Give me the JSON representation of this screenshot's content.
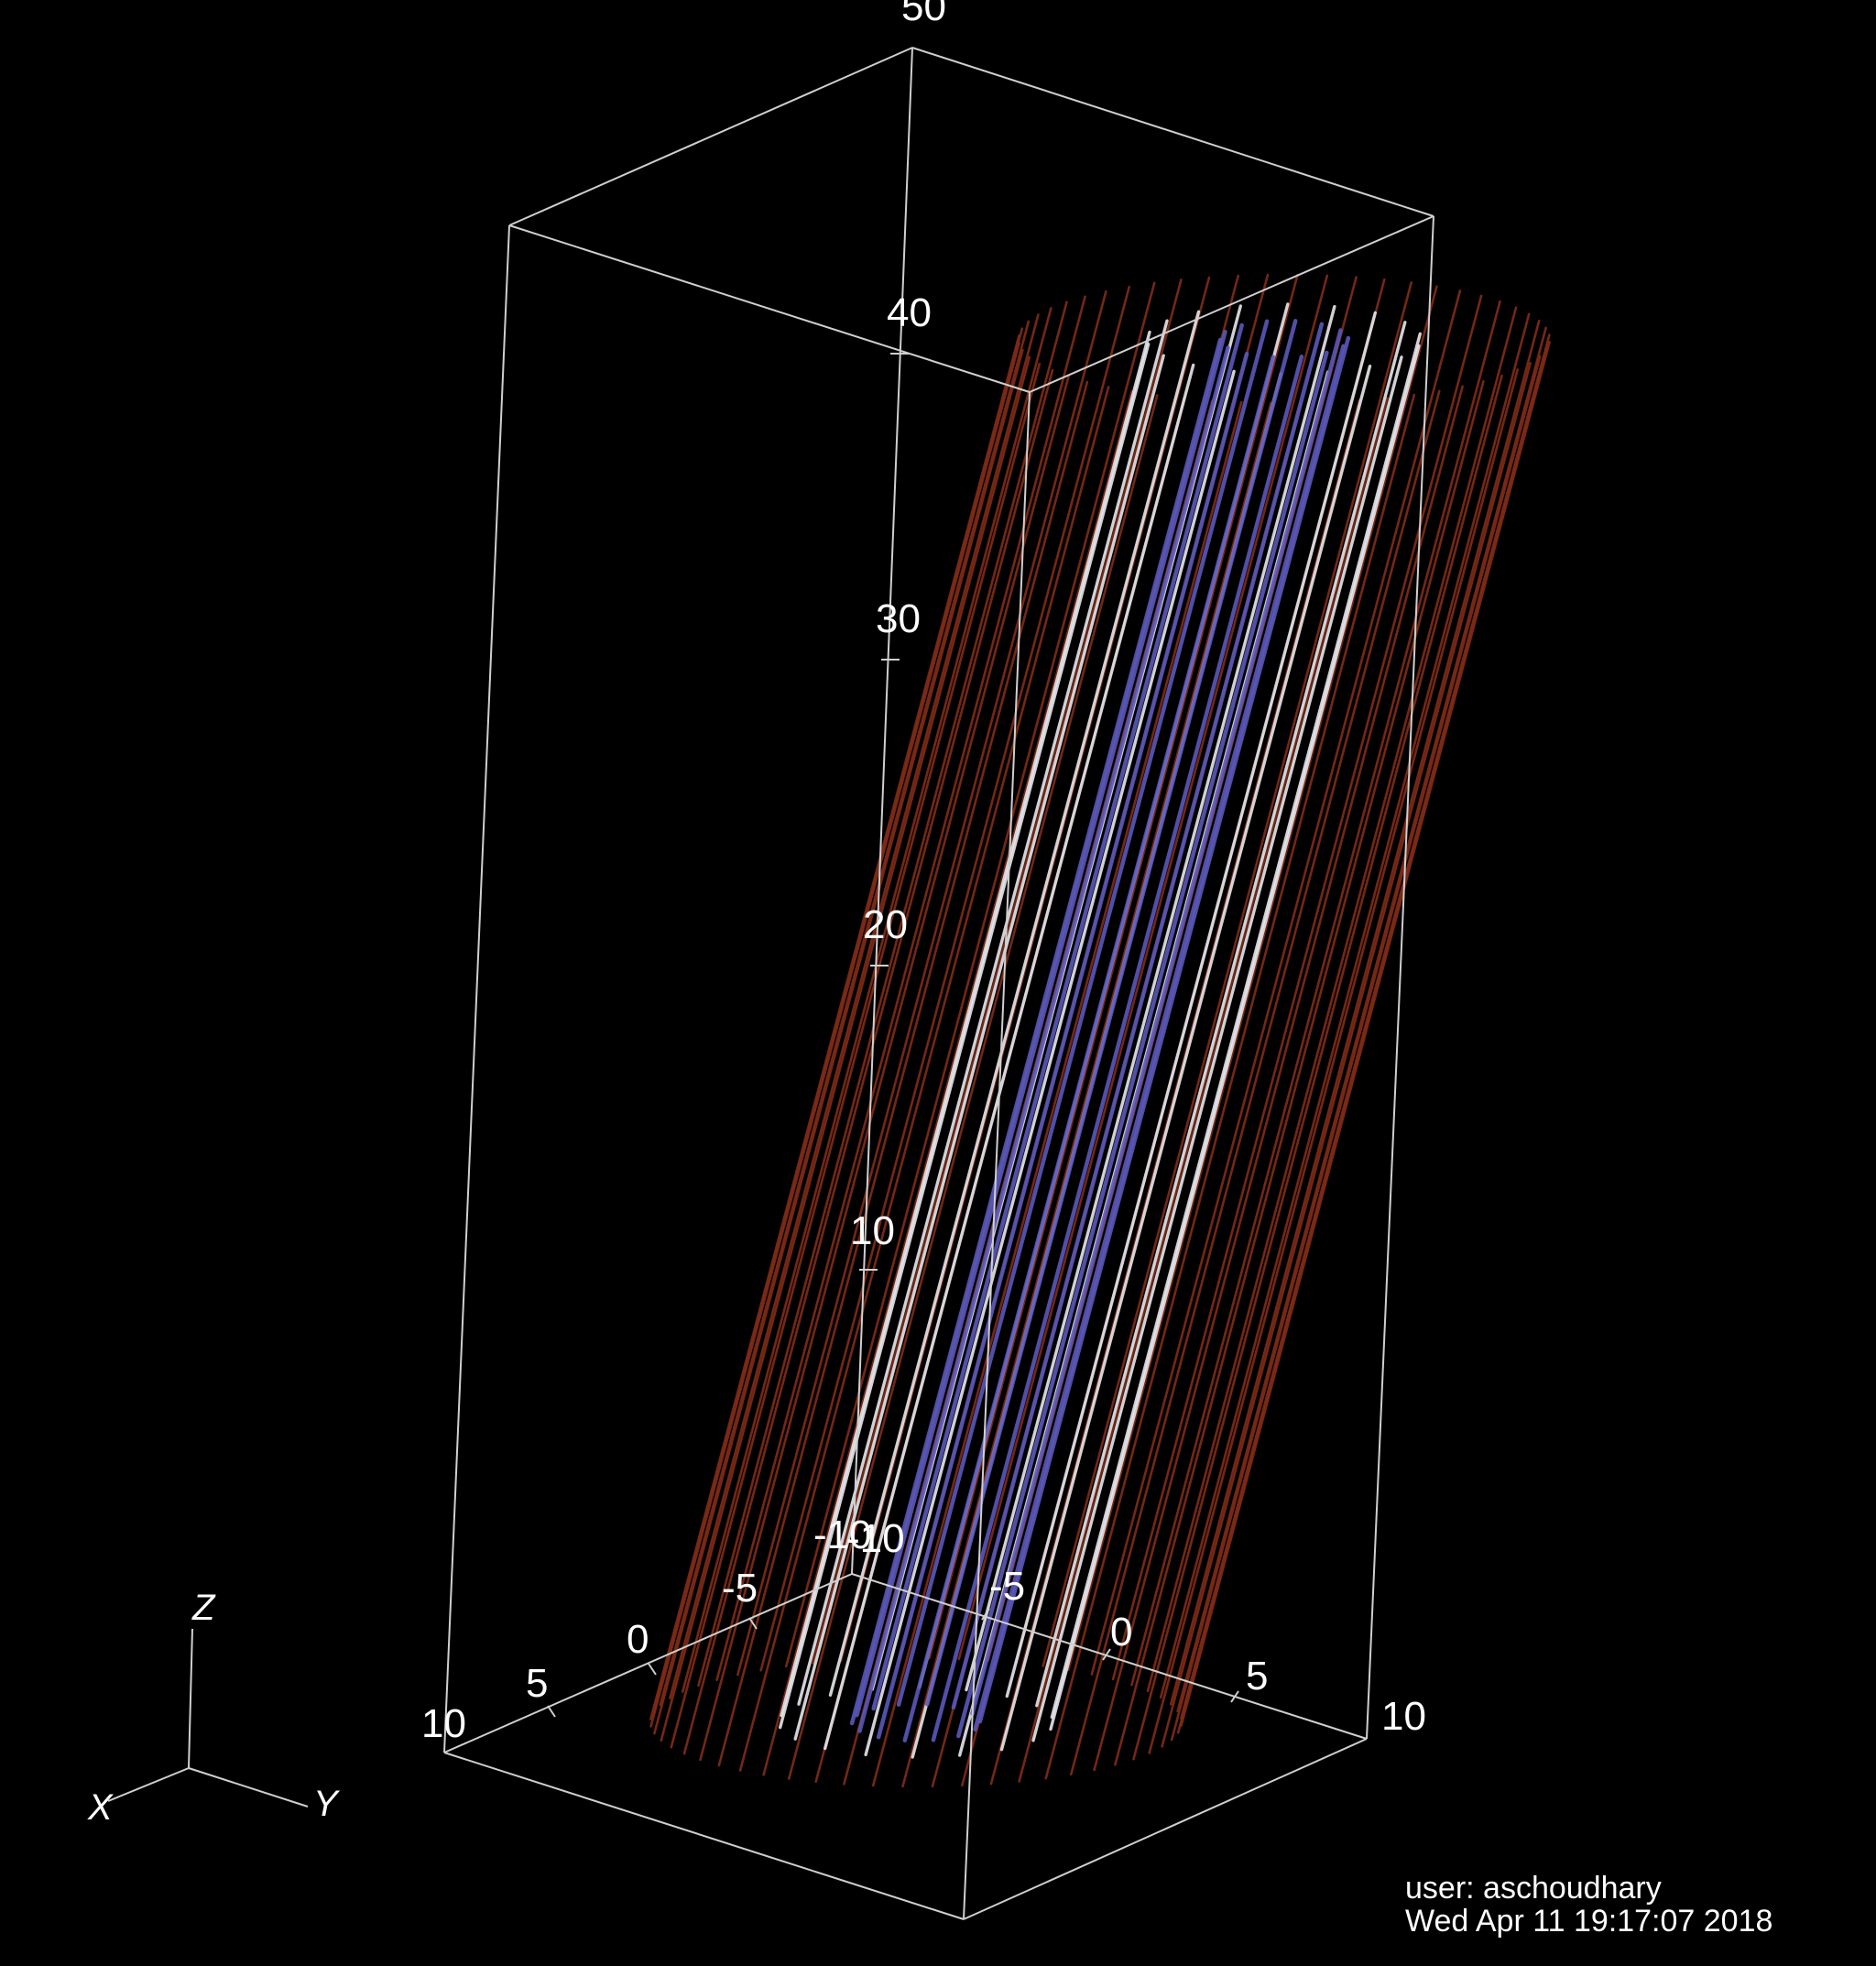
{
  "colors": {
    "background": "#000000",
    "box": "#cfcfcf",
    "text": "#ffffff",
    "outer_field_lines": "#7a2a16",
    "middle_field_lines": "#e8e8ec",
    "inner_field_lines": "#5a58b8"
  },
  "axis_ticks": {
    "z": [
      "10",
      "20",
      "30",
      "40",
      "50"
    ],
    "x": [
      "10",
      "5",
      "0",
      "-5",
      "-10"
    ],
    "y": [
      "-10",
      "-5",
      "0",
      "5",
      "10"
    ]
  },
  "triad": {
    "z": "Z",
    "x": "X",
    "y": "Y"
  },
  "footer": {
    "user": "user: aschoudhary",
    "timestamp": "Wed Apr 11 19:17:07 2018"
  }
}
